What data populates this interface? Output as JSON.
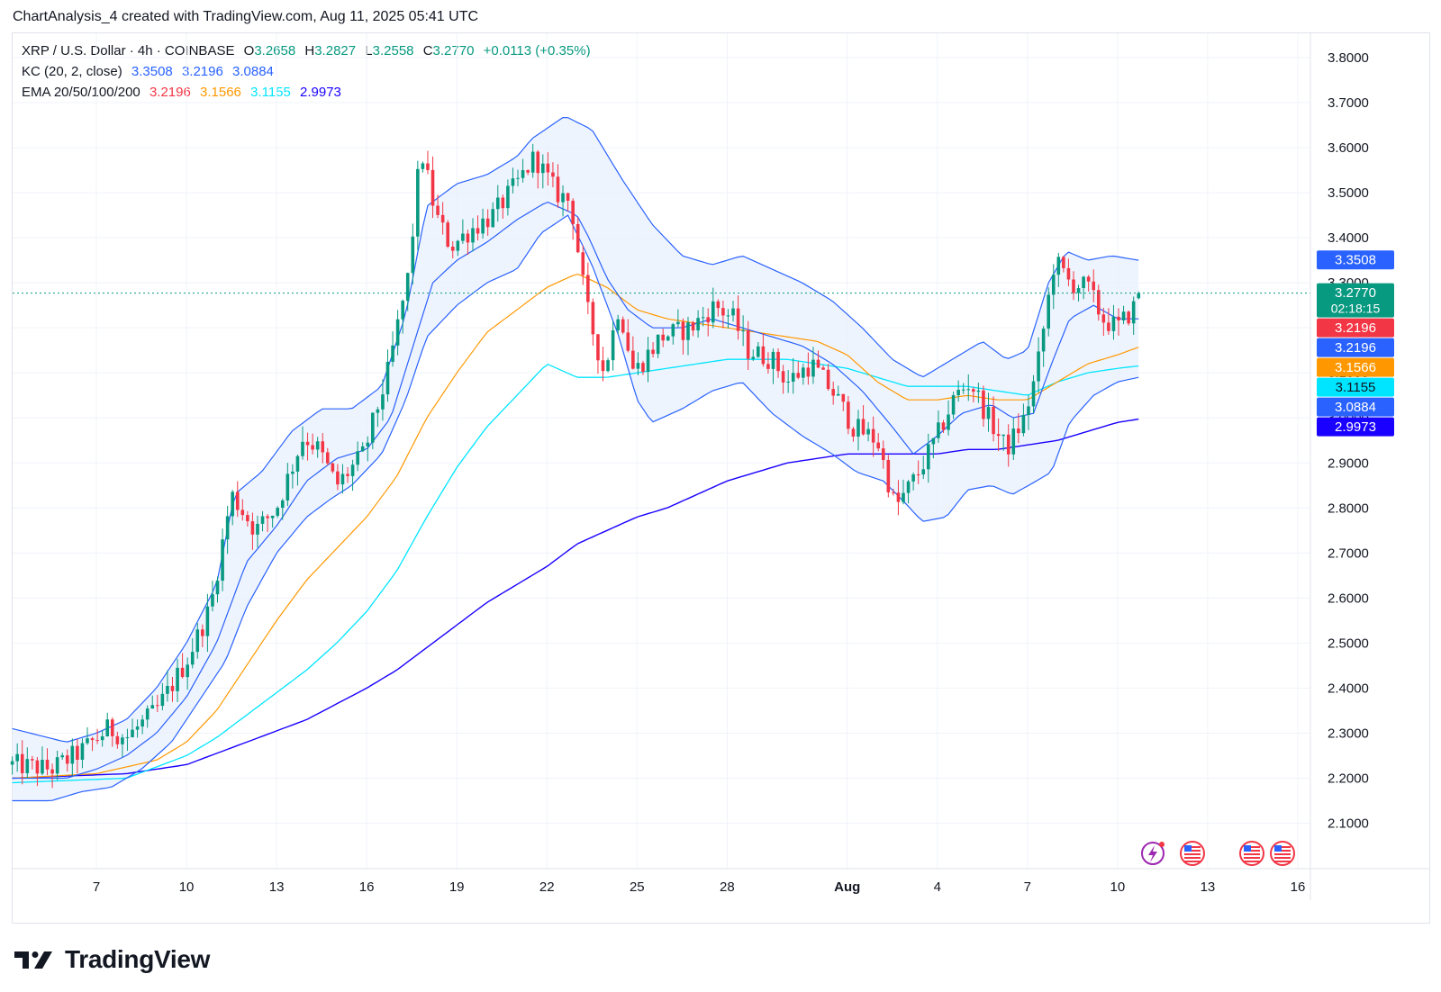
{
  "header": {
    "text": "ChartAnalysis_4 created with TradingView.com, Aug 11, 2025 05:41 UTC"
  },
  "legend": {
    "symbol": "XRP / U.S. Dollar · 4h · COINBASE",
    "open_label": "O",
    "open": "3.2658",
    "high_label": "H",
    "high": "3.2827",
    "low_label": "L",
    "low": "3.2558",
    "close_label": "C",
    "close": "3.2770",
    "change": "+0.0113 (+0.35%)",
    "kc_label": "KC (20, 2, close)",
    "kc_upper": "3.3508",
    "kc_mid": "3.2196",
    "kc_lower": "3.0884",
    "ema_label": "EMA 20/50/100/200",
    "ema20": "3.2196",
    "ema50": "3.1566",
    "ema100": "3.1155",
    "ema200": "2.9973"
  },
  "brand": {
    "name": "TradingView"
  },
  "colors": {
    "up": "#089981",
    "down": "#f23645",
    "kc": "#2962ff",
    "kc_fill": "#e8f0fe",
    "ema20": "#ff0000",
    "ema50": "#ff9800",
    "ema100": "#00e5ff",
    "ema200": "#1a00ff",
    "grid": "#f0f3fa",
    "axis_text": "#131722"
  },
  "chart_data": {
    "type": "candlestick",
    "title": "XRP / U.S. Dollar · 4h · COINBASE",
    "ylim": [
      2.0,
      3.85
    ],
    "y_ticks": [
      "3.8000",
      "3.7000",
      "3.6000",
      "3.5000",
      "3.4000",
      "3.3000",
      "3.2000",
      "3.1000",
      "3.0000",
      "2.9000",
      "2.8000",
      "2.7000",
      "2.6000",
      "2.5000",
      "2.4000",
      "2.3000",
      "2.2000",
      "2.1000"
    ],
    "x_ticks": [
      {
        "label": "7",
        "day": 7
      },
      {
        "label": "10",
        "day": 10
      },
      {
        "label": "13",
        "day": 13
      },
      {
        "label": "16",
        "day": 16
      },
      {
        "label": "19",
        "day": 19
      },
      {
        "label": "22",
        "day": 22
      },
      {
        "label": "25",
        "day": 25
      },
      {
        "label": "28",
        "day": 28
      },
      {
        "label": "Aug",
        "day": 32
      },
      {
        "label": "4",
        "day": 35
      },
      {
        "label": "7",
        "day": 38
      },
      {
        "label": "10",
        "day": 41
      },
      {
        "label": "13",
        "day": 44
      },
      {
        "label": "16",
        "day": 47
      }
    ],
    "x_start_day": 4.2,
    "price_anchors": [
      [
        4.2,
        2.23
      ],
      [
        5.5,
        2.22
      ],
      [
        6.5,
        2.26
      ],
      [
        7.4,
        2.31
      ],
      [
        8.0,
        2.29
      ],
      [
        9.0,
        2.35
      ],
      [
        10.0,
        2.46
      ],
      [
        10.8,
        2.58
      ],
      [
        11.5,
        2.83
      ],
      [
        12.3,
        2.75
      ],
      [
        13.0,
        2.8
      ],
      [
        13.9,
        2.96
      ],
      [
        14.4,
        2.93
      ],
      [
        15.0,
        2.85
      ],
      [
        15.9,
        2.92
      ],
      [
        16.7,
        3.1
      ],
      [
        17.4,
        3.32
      ],
      [
        17.8,
        3.6
      ],
      [
        18.3,
        3.45
      ],
      [
        18.8,
        3.38
      ],
      [
        19.5,
        3.42
      ],
      [
        20.2,
        3.45
      ],
      [
        21.0,
        3.52
      ],
      [
        21.6,
        3.58
      ],
      [
        22.3,
        3.5
      ],
      [
        22.8,
        3.48
      ],
      [
        23.3,
        3.25
      ],
      [
        23.9,
        3.1
      ],
      [
        24.4,
        3.25
      ],
      [
        24.9,
        3.1
      ],
      [
        25.8,
        3.18
      ],
      [
        26.8,
        3.2
      ],
      [
        27.6,
        3.25
      ],
      [
        28.2,
        3.22
      ],
      [
        28.7,
        3.15
      ],
      [
        29.5,
        3.13
      ],
      [
        30.0,
        3.08
      ],
      [
        30.8,
        3.12
      ],
      [
        31.6,
        3.05
      ],
      [
        32.2,
        2.98
      ],
      [
        33.0,
        2.95
      ],
      [
        33.6,
        2.8
      ],
      [
        34.3,
        2.87
      ],
      [
        35.0,
        2.96
      ],
      [
        35.6,
        3.05
      ],
      [
        36.1,
        3.08
      ],
      [
        36.7,
        3.0
      ],
      [
        37.3,
        2.93
      ],
      [
        37.9,
        3.0
      ],
      [
        38.3,
        3.1
      ],
      [
        38.9,
        3.35
      ],
      [
        39.4,
        3.3
      ],
      [
        40.0,
        3.29
      ],
      [
        40.5,
        3.22
      ],
      [
        41.0,
        3.2
      ],
      [
        41.6,
        3.25
      ],
      [
        41.75,
        3.277
      ]
    ],
    "kc_upper": [
      [
        4.2,
        2.31
      ],
      [
        6.0,
        2.28
      ],
      [
        7.0,
        2.3
      ],
      [
        8.0,
        2.33
      ],
      [
        9.0,
        2.4
      ],
      [
        10.0,
        2.5
      ],
      [
        11.0,
        2.63
      ],
      [
        11.6,
        2.83
      ],
      [
        12.5,
        2.88
      ],
      [
        13.5,
        2.97
      ],
      [
        14.5,
        3.02
      ],
      [
        15.5,
        3.02
      ],
      [
        16.5,
        3.07
      ],
      [
        17.3,
        3.23
      ],
      [
        18.0,
        3.47
      ],
      [
        19.0,
        3.52
      ],
      [
        20.0,
        3.54
      ],
      [
        21.0,
        3.58
      ],
      [
        21.5,
        3.62
      ],
      [
        22.6,
        3.67
      ],
      [
        23.5,
        3.64
      ],
      [
        24.5,
        3.53
      ],
      [
        25.5,
        3.43
      ],
      [
        26.5,
        3.36
      ],
      [
        27.5,
        3.34
      ],
      [
        28.5,
        3.36
      ],
      [
        29.5,
        3.33
      ],
      [
        30.5,
        3.3
      ],
      [
        31.5,
        3.26
      ],
      [
        32.5,
        3.2
      ],
      [
        33.5,
        3.13
      ],
      [
        34.5,
        3.09
      ],
      [
        35.5,
        3.13
      ],
      [
        36.5,
        3.17
      ],
      [
        37.3,
        3.13
      ],
      [
        38.0,
        3.15
      ],
      [
        38.7,
        3.3
      ],
      [
        39.3,
        3.37
      ],
      [
        40.0,
        3.35
      ],
      [
        40.8,
        3.36
      ],
      [
        41.7,
        3.35
      ]
    ],
    "kc_mid": [
      [
        4.2,
        2.2
      ],
      [
        6.0,
        2.2
      ],
      [
        7.0,
        2.22
      ],
      [
        8.0,
        2.25
      ],
      [
        9.0,
        2.3
      ],
      [
        10.0,
        2.38
      ],
      [
        11.0,
        2.5
      ],
      [
        12.0,
        2.68
      ],
      [
        13.0,
        2.76
      ],
      [
        14.0,
        2.86
      ],
      [
        15.0,
        2.91
      ],
      [
        16.0,
        2.93
      ],
      [
        16.8,
        3.0
      ],
      [
        17.5,
        3.15
      ],
      [
        18.2,
        3.3
      ],
      [
        19.0,
        3.35
      ],
      [
        20.0,
        3.39
      ],
      [
        21.0,
        3.44
      ],
      [
        22.0,
        3.48
      ],
      [
        23.0,
        3.45
      ],
      [
        23.4,
        3.4
      ],
      [
        24.0,
        3.31
      ],
      [
        24.7,
        3.24
      ],
      [
        25.5,
        3.2
      ],
      [
        26.5,
        3.2
      ],
      [
        27.5,
        3.22
      ],
      [
        28.5,
        3.2
      ],
      [
        29.5,
        3.18
      ],
      [
        30.5,
        3.16
      ],
      [
        31.5,
        3.12
      ],
      [
        32.5,
        3.06
      ],
      [
        33.5,
        2.98
      ],
      [
        34.2,
        2.92
      ],
      [
        35.0,
        2.96
      ],
      [
        35.8,
        3.01
      ],
      [
        36.8,
        3.03
      ],
      [
        37.5,
        3.0
      ],
      [
        38.2,
        3.01
      ],
      [
        38.8,
        3.12
      ],
      [
        39.4,
        3.22
      ],
      [
        40.2,
        3.25
      ],
      [
        41.0,
        3.22
      ],
      [
        41.7,
        3.22
      ]
    ],
    "kc_lower": [
      [
        4.2,
        2.15
      ],
      [
        5.5,
        2.15
      ],
      [
        6.5,
        2.17
      ],
      [
        7.5,
        2.18
      ],
      [
        8.5,
        2.22
      ],
      [
        9.5,
        2.28
      ],
      [
        10.5,
        2.38
      ],
      [
        11.3,
        2.46
      ],
      [
        12.0,
        2.58
      ],
      [
        13.0,
        2.7
      ],
      [
        14.0,
        2.78
      ],
      [
        14.8,
        2.82
      ],
      [
        15.5,
        2.85
      ],
      [
        16.5,
        2.92
      ],
      [
        17.3,
        3.04
      ],
      [
        18.0,
        3.18
      ],
      [
        19.0,
        3.25
      ],
      [
        20.0,
        3.3
      ],
      [
        21.0,
        3.33
      ],
      [
        21.8,
        3.41
      ],
      [
        22.7,
        3.45
      ],
      [
        23.5,
        3.34
      ],
      [
        24.4,
        3.18
      ],
      [
        25.0,
        3.04
      ],
      [
        25.5,
        2.99
      ],
      [
        26.5,
        3.02
      ],
      [
        27.5,
        3.06
      ],
      [
        28.5,
        3.08
      ],
      [
        29.5,
        3.01
      ],
      [
        30.5,
        2.96
      ],
      [
        31.5,
        2.92
      ],
      [
        32.3,
        2.88
      ],
      [
        33.2,
        2.86
      ],
      [
        33.8,
        2.82
      ],
      [
        34.5,
        2.77
      ],
      [
        35.3,
        2.78
      ],
      [
        36.0,
        2.84
      ],
      [
        36.8,
        2.85
      ],
      [
        37.5,
        2.83
      ],
      [
        38.3,
        2.86
      ],
      [
        38.8,
        2.88
      ],
      [
        39.4,
        2.99
      ],
      [
        40.2,
        3.05
      ],
      [
        41.0,
        3.08
      ],
      [
        41.7,
        3.09
      ]
    ],
    "ema20": [
      [
        4.2,
        2.2
      ],
      [
        6.0,
        2.2
      ],
      [
        7.0,
        2.22
      ],
      [
        8.0,
        2.25
      ],
      [
        9.0,
        2.3
      ],
      [
        10.0,
        2.38
      ],
      [
        11.0,
        2.5
      ],
      [
        12.0,
        2.68
      ],
      [
        13.0,
        2.76
      ],
      [
        14.0,
        2.86
      ],
      [
        15.0,
        2.91
      ],
      [
        16.0,
        2.93
      ],
      [
        16.8,
        3.0
      ],
      [
        17.5,
        3.15
      ],
      [
        18.2,
        3.3
      ],
      [
        19.0,
        3.35
      ],
      [
        20.0,
        3.39
      ],
      [
        21.0,
        3.44
      ],
      [
        22.0,
        3.48
      ],
      [
        23.0,
        3.45
      ],
      [
        23.4,
        3.4
      ],
      [
        24.0,
        3.31
      ],
      [
        24.7,
        3.24
      ],
      [
        25.5,
        3.2
      ],
      [
        26.5,
        3.2
      ],
      [
        27.5,
        3.22
      ],
      [
        28.5,
        3.2
      ],
      [
        29.5,
        3.18
      ],
      [
        30.5,
        3.16
      ],
      [
        31.5,
        3.12
      ],
      [
        32.5,
        3.06
      ],
      [
        33.5,
        2.98
      ],
      [
        34.2,
        2.92
      ],
      [
        35.0,
        2.96
      ],
      [
        35.8,
        3.01
      ],
      [
        36.8,
        3.03
      ],
      [
        37.5,
        3.0
      ],
      [
        38.2,
        3.01
      ],
      [
        38.8,
        3.12
      ],
      [
        39.4,
        3.22
      ],
      [
        40.2,
        3.25
      ],
      [
        41.0,
        3.22
      ],
      [
        41.7,
        3.22
      ]
    ],
    "ema50": [
      [
        4.2,
        2.2
      ],
      [
        7.0,
        2.21
      ],
      [
        9.0,
        2.24
      ],
      [
        10.0,
        2.28
      ],
      [
        11.0,
        2.35
      ],
      [
        12.0,
        2.45
      ],
      [
        13.0,
        2.55
      ],
      [
        14.0,
        2.64
      ],
      [
        15.0,
        2.71
      ],
      [
        16.0,
        2.78
      ],
      [
        17.0,
        2.87
      ],
      [
        18.0,
        3.0
      ],
      [
        19.0,
        3.1
      ],
      [
        20.0,
        3.19
      ],
      [
        21.0,
        3.24
      ],
      [
        22.0,
        3.29
      ],
      [
        23.0,
        3.32
      ],
      [
        24.0,
        3.29
      ],
      [
        25.0,
        3.24
      ],
      [
        26.0,
        3.22
      ],
      [
        27.0,
        3.21
      ],
      [
        28.0,
        3.2
      ],
      [
        29.0,
        3.19
      ],
      [
        30.0,
        3.18
      ],
      [
        31.0,
        3.17
      ],
      [
        32.0,
        3.14
      ],
      [
        33.0,
        3.08
      ],
      [
        34.0,
        3.04
      ],
      [
        35.0,
        3.04
      ],
      [
        36.0,
        3.05
      ],
      [
        37.0,
        3.04
      ],
      [
        38.0,
        3.04
      ],
      [
        39.0,
        3.08
      ],
      [
        40.0,
        3.12
      ],
      [
        41.0,
        3.14
      ],
      [
        41.7,
        3.157
      ]
    ],
    "ema100": [
      [
        4.2,
        2.19
      ],
      [
        8.0,
        2.2
      ],
      [
        10.0,
        2.25
      ],
      [
        11.0,
        2.29
      ],
      [
        12.0,
        2.34
      ],
      [
        13.0,
        2.39
      ],
      [
        14.0,
        2.44
      ],
      [
        15.0,
        2.5
      ],
      [
        16.0,
        2.57
      ],
      [
        17.0,
        2.66
      ],
      [
        18.0,
        2.78
      ],
      [
        19.0,
        2.89
      ],
      [
        20.0,
        2.98
      ],
      [
        21.0,
        3.05
      ],
      [
        22.0,
        3.12
      ],
      [
        23.0,
        3.09
      ],
      [
        24.0,
        3.09
      ],
      [
        25.0,
        3.1
      ],
      [
        26.0,
        3.11
      ],
      [
        27.0,
        3.12
      ],
      [
        28.0,
        3.13
      ],
      [
        29.0,
        3.13
      ],
      [
        30.0,
        3.13
      ],
      [
        31.0,
        3.12
      ],
      [
        32.0,
        3.11
      ],
      [
        33.0,
        3.09
      ],
      [
        34.0,
        3.07
      ],
      [
        35.0,
        3.07
      ],
      [
        36.0,
        3.07
      ],
      [
        37.0,
        3.06
      ],
      [
        38.0,
        3.05
      ],
      [
        39.0,
        3.08
      ],
      [
        40.0,
        3.1
      ],
      [
        41.0,
        3.11
      ],
      [
        41.7,
        3.1155
      ]
    ],
    "ema200": [
      [
        4.2,
        2.2
      ],
      [
        8.0,
        2.21
      ],
      [
        10.0,
        2.23
      ],
      [
        12.0,
        2.28
      ],
      [
        14.0,
        2.33
      ],
      [
        16.0,
        2.4
      ],
      [
        17.0,
        2.44
      ],
      [
        18.0,
        2.49
      ],
      [
        19.0,
        2.54
      ],
      [
        20.0,
        2.59
      ],
      [
        21.0,
        2.63
      ],
      [
        22.0,
        2.67
      ],
      [
        23.0,
        2.72
      ],
      [
        24.0,
        2.75
      ],
      [
        25.0,
        2.78
      ],
      [
        26.0,
        2.8
      ],
      [
        27.0,
        2.83
      ],
      [
        28.0,
        2.86
      ],
      [
        29.0,
        2.88
      ],
      [
        30.0,
        2.9
      ],
      [
        31.0,
        2.91
      ],
      [
        32.0,
        2.92
      ],
      [
        33.0,
        2.92
      ],
      [
        34.0,
        2.92
      ],
      [
        35.0,
        2.92
      ],
      [
        36.0,
        2.93
      ],
      [
        37.0,
        2.93
      ],
      [
        38.0,
        2.94
      ],
      [
        39.0,
        2.95
      ],
      [
        40.0,
        2.97
      ],
      [
        41.0,
        2.99
      ],
      [
        41.7,
        2.9973
      ]
    ],
    "price_labels": [
      {
        "value": 3.3508,
        "text": "3.3508",
        "color": "#2962ff"
      },
      {
        "value": 3.277,
        "text": "3.2770",
        "sub": "02:18:15",
        "color": "#089981"
      },
      {
        "value": 3.2196,
        "text": "3.2196",
        "color": "#f23645"
      },
      {
        "value": 3.2196,
        "text": "3.2196",
        "color": "#2962ff",
        "stack": 1
      },
      {
        "value": 3.1566,
        "text": "3.1566",
        "color": "#ff9800"
      },
      {
        "value": 3.1155,
        "text": "3.1155",
        "color": "#00e5ff"
      },
      {
        "value": 3.0884,
        "text": "3.0884",
        "color": "#2962ff",
        "stack": 1
      },
      {
        "value": 2.9973,
        "text": "2.9973",
        "color": "#1a00ff"
      }
    ],
    "last_price": 3.277,
    "countdown": "02:18:15"
  }
}
